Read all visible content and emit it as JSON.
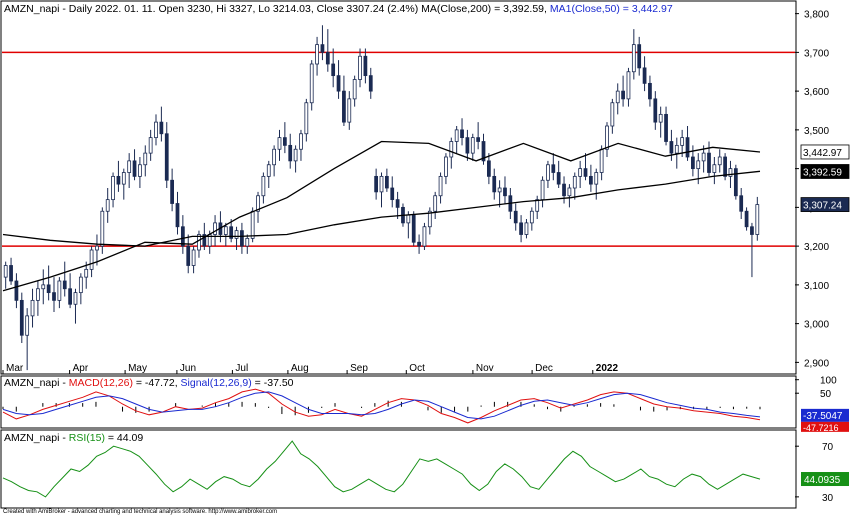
{
  "colors": {
    "background": "#ffffff",
    "candle_up": "#ffffff",
    "candle_down": "#1b2a52",
    "candle_outline": "#1b2a52",
    "ma200": "#000000",
    "ma50": "#000000",
    "level_line": "#e00000",
    "macd": "#e01010",
    "signal": "#1a2ad0",
    "histogram": "#000000",
    "rsi": "#169016",
    "frame": "#000000"
  },
  "price_panel": {
    "title_prefix": "AMZN_napi - Daily 2022. 01. 11. Open 3230, Hi 3327, Lo 3214.03, Close 3307.24 (2.4%) MA(Close,200) = 3,392.59, ",
    "title_ma50": "MA1(Close,50) = 3,442.97",
    "y_labels": [
      "3,800",
      "3,700",
      "3,600",
      "3,500",
      "3,400",
      "3,300",
      "3,200",
      "3,100",
      "3,000",
      "2,900"
    ],
    "x_labels": [
      "Mar",
      "Apr",
      "May",
      "Jun",
      "Jul",
      "Aug",
      "Sep",
      "Oct",
      "Nov",
      "Dec",
      "2022"
    ],
    "value_tags": [
      "3,442.97",
      "3,392.59",
      "3,307.24"
    ]
  },
  "macd_panel": {
    "title_name": "AMZN_napi - ",
    "title_macd": "MACD(12,26)",
    "title_macd_value": " = -47.72, ",
    "title_signal": "Signal(12,26,9)",
    "title_signal_value": " = -37.50",
    "y_labels": [
      "100",
      "50"
    ],
    "value_tags": [
      "-37.5047",
      "-47.7216"
    ]
  },
  "rsi_panel": {
    "title_name": "AMZN_napi - ",
    "title_rsi": "RSI(15)",
    "title_rsi_value": " = 44.09",
    "y_labels": [
      "70",
      "30"
    ],
    "value_tag": "44.0935"
  },
  "footer": "Created with AmiBroker - advanced charting and technical analysis software. http://www.amibroker.com",
  "chart_data": [
    {
      "type": "candlestick",
      "title": "AMZN_napi - Daily 2022. 01. 11. Open 3230, Hi 3327, Lo 3214.03, Close 3307.24 (2.4%) MA(Close,200) = 3,392.59, MA1(Close,50) = 3,442.97",
      "x_labels": [
        "Mar",
        "Apr",
        "May",
        "Jun",
        "Jul",
        "Aug",
        "Sep",
        "Oct",
        "Nov",
        "Dec",
        "2022"
      ],
      "ylim": [
        2870,
        3830
      ],
      "y_ticks": [
        2900,
        3000,
        3100,
        3200,
        3300,
        3400,
        3500,
        3600,
        3700,
        3800
      ],
      "horizontal_levels": [
        3700,
        3200
      ],
      "last_bar": {
        "open": 3230,
        "high": 3327,
        "low": 3214.03,
        "close": 3307.24
      },
      "ma200": [
        3230,
        3215,
        3205,
        3200,
        3225,
        3225,
        3230,
        3255,
        3275,
        3285,
        3300,
        3315,
        3325,
        3345,
        3360,
        3380,
        3393
      ],
      "ma50": [
        3085,
        3120,
        3160,
        3210,
        3205,
        3275,
        3325,
        3400,
        3470,
        3465,
        3420,
        3465,
        3420,
        3465,
        3432,
        3455,
        3443
      ],
      "candles": [
        [
          3120,
          3160,
          3090,
          3150
        ],
        [
          3150,
          3170,
          3100,
          3110
        ],
        [
          3110,
          3130,
          3040,
          3060
        ],
        [
          3060,
          3080,
          2950,
          2970
        ],
        [
          2970,
          3040,
          2880,
          3020
        ],
        [
          3020,
          3090,
          2990,
          3060
        ],
        [
          3060,
          3110,
          3020,
          3090
        ],
        [
          3090,
          3140,
          3050,
          3100
        ],
        [
          3100,
          3150,
          3060,
          3080
        ],
        [
          3080,
          3120,
          3030,
          3060
        ],
        [
          3060,
          3120,
          3040,
          3110
        ],
        [
          3110,
          3160,
          3070,
          3090
        ],
        [
          3090,
          3130,
          3040,
          3050
        ],
        [
          3050,
          3090,
          3000,
          3080
        ],
        [
          3080,
          3130,
          3050,
          3120
        ],
        [
          3120,
          3160,
          3090,
          3140
        ],
        [
          3140,
          3200,
          3120,
          3190
        ],
        [
          3190,
          3230,
          3150,
          3200
        ],
        [
          3200,
          3300,
          3180,
          3290
        ],
        [
          3290,
          3350,
          3260,
          3320
        ],
        [
          3320,
          3390,
          3300,
          3380
        ],
        [
          3380,
          3420,
          3340,
          3360
        ],
        [
          3360,
          3400,
          3320,
          3390
        ],
        [
          3390,
          3440,
          3350,
          3420
        ],
        [
          3420,
          3450,
          3370,
          3380
        ],
        [
          3380,
          3430,
          3350,
          3410
        ],
        [
          3410,
          3460,
          3380,
          3440
        ],
        [
          3440,
          3500,
          3420,
          3480
        ],
        [
          3480,
          3540,
          3460,
          3520
        ],
        [
          3520,
          3560,
          3470,
          3490
        ],
        [
          3490,
          3520,
          3350,
          3370
        ],
        [
          3370,
          3400,
          3290,
          3310
        ],
        [
          3310,
          3340,
          3230,
          3250
        ],
        [
          3250,
          3280,
          3180,
          3200
        ],
        [
          3200,
          3230,
          3130,
          3150
        ],
        [
          3150,
          3200,
          3130,
          3190
        ],
        [
          3190,
          3240,
          3170,
          3230
        ],
        [
          3230,
          3260,
          3190,
          3200
        ],
        [
          3200,
          3240,
          3180,
          3230
        ],
        [
          3230,
          3280,
          3200,
          3260
        ],
        [
          3260,
          3290,
          3210,
          3230
        ],
        [
          3230,
          3260,
          3200,
          3250
        ],
        [
          3250,
          3270,
          3210,
          3220
        ],
        [
          3220,
          3250,
          3190,
          3240
        ],
        [
          3240,
          3260,
          3180,
          3200
        ],
        [
          3200,
          3230,
          3180,
          3220
        ],
        [
          3220,
          3300,
          3210,
          3290
        ],
        [
          3290,
          3340,
          3260,
          3330
        ],
        [
          3330,
          3390,
          3310,
          3380
        ],
        [
          3380,
          3420,
          3350,
          3410
        ],
        [
          3410,
          3460,
          3380,
          3450
        ],
        [
          3450,
          3500,
          3420,
          3480
        ],
        [
          3480,
          3520,
          3440,
          3460
        ],
        [
          3460,
          3490,
          3400,
          3420
        ],
        [
          3420,
          3460,
          3390,
          3450
        ],
        [
          3450,
          3500,
          3420,
          3490
        ],
        [
          3490,
          3580,
          3470,
          3570
        ],
        [
          3570,
          3680,
          3550,
          3670
        ],
        [
          3670,
          3740,
          3640,
          3720
        ],
        [
          3720,
          3770,
          3680,
          3700
        ],
        [
          3700,
          3760,
          3650,
          3670
        ],
        [
          3670,
          3710,
          3610,
          3640
        ],
        [
          3640,
          3680,
          3580,
          3600
        ],
        [
          3600,
          3640,
          3510,
          3520
        ],
        [
          3520,
          3600,
          3500,
          3580
        ],
        [
          3580,
          3640,
          3560,
          3630
        ],
        [
          3630,
          3710,
          3610,
          3690
        ],
        [
          3690,
          3710,
          3620,
          3640
        ],
        [
          3640,
          3660,
          3580,
          3600
        ],
        [
          3380,
          3400,
          3320,
          3340
        ],
        [
          3340,
          3390,
          3300,
          3380
        ],
        [
          3380,
          3400,
          3340,
          3350
        ],
        [
          3350,
          3380,
          3300,
          3320
        ],
        [
          3320,
          3340,
          3270,
          3300
        ],
        [
          3300,
          3310,
          3250,
          3260
        ],
        [
          3260,
          3290,
          3220,
          3280
        ],
        [
          3280,
          3290,
          3200,
          3210
        ],
        [
          3210,
          3230,
          3180,
          3200
        ],
        [
          3200,
          3260,
          3190,
          3250
        ],
        [
          3250,
          3300,
          3230,
          3290
        ],
        [
          3290,
          3340,
          3270,
          3330
        ],
        [
          3330,
          3390,
          3310,
          3380
        ],
        [
          3380,
          3440,
          3360,
          3430
        ],
        [
          3430,
          3480,
          3400,
          3470
        ],
        [
          3470,
          3510,
          3440,
          3500
        ],
        [
          3500,
          3530,
          3460,
          3480
        ],
        [
          3480,
          3500,
          3420,
          3440
        ],
        [
          3440,
          3490,
          3420,
          3480
        ],
        [
          3480,
          3520,
          3450,
          3470
        ],
        [
          3470,
          3490,
          3410,
          3420
        ],
        [
          3420,
          3440,
          3360,
          3380
        ],
        [
          3380,
          3400,
          3320,
          3340
        ],
        [
          3340,
          3370,
          3300,
          3350
        ],
        [
          3350,
          3380,
          3310,
          3330
        ],
        [
          3330,
          3350,
          3270,
          3290
        ],
        [
          3290,
          3310,
          3240,
          3260
        ],
        [
          3260,
          3280,
          3210,
          3230
        ],
        [
          3230,
          3270,
          3220,
          3260
        ],
        [
          3260,
          3300,
          3240,
          3290
        ],
        [
          3290,
          3330,
          3270,
          3320
        ],
        [
          3320,
          3380,
          3300,
          3370
        ],
        [
          3370,
          3420,
          3350,
          3410
        ],
        [
          3410,
          3440,
          3370,
          3390
        ],
        [
          3390,
          3420,
          3350,
          3360
        ],
        [
          3360,
          3380,
          3310,
          3330
        ],
        [
          3330,
          3360,
          3300,
          3350
        ],
        [
          3350,
          3390,
          3320,
          3380
        ],
        [
          3380,
          3420,
          3350,
          3400
        ],
        [
          3400,
          3440,
          3370,
          3380
        ],
        [
          3380,
          3410,
          3340,
          3360
        ],
        [
          3360,
          3400,
          3320,
          3390
        ],
        [
          3390,
          3460,
          3370,
          3450
        ],
        [
          3450,
          3520,
          3430,
          3510
        ],
        [
          3510,
          3580,
          3490,
          3570
        ],
        [
          3570,
          3620,
          3540,
          3600
        ],
        [
          3600,
          3640,
          3560,
          3580
        ],
        [
          3580,
          3660,
          3560,
          3650
        ],
        [
          3650,
          3760,
          3630,
          3720
        ],
        [
          3720,
          3740,
          3640,
          3660
        ],
        [
          3660,
          3690,
          3600,
          3620
        ],
        [
          3620,
          3640,
          3560,
          3580
        ],
        [
          3580,
          3600,
          3500,
          3520
        ],
        [
          3520,
          3560,
          3480,
          3540
        ],
        [
          3540,
          3560,
          3460,
          3470
        ],
        [
          3470,
          3500,
          3420,
          3440
        ],
        [
          3440,
          3480,
          3400,
          3460
        ],
        [
          3460,
          3500,
          3430,
          3480
        ],
        [
          3480,
          3510,
          3420,
          3430
        ],
        [
          3430,
          3460,
          3380,
          3400
        ],
        [
          3400,
          3440,
          3360,
          3420
        ],
        [
          3420,
          3460,
          3390,
          3440
        ],
        [
          3440,
          3470,
          3380,
          3390
        ],
        [
          3390,
          3430,
          3360,
          3410
        ],
        [
          3410,
          3450,
          3390,
          3430
        ],
        [
          3430,
          3440,
          3370,
          3380
        ],
        [
          3380,
          3420,
          3350,
          3400
        ],
        [
          3400,
          3410,
          3320,
          3330
        ],
        [
          3330,
          3350,
          3270,
          3290
        ],
        [
          3290,
          3300,
          3240,
          3250
        ],
        [
          3250,
          3260,
          3120,
          3230
        ],
        [
          3230,
          3327,
          3214.03,
          3307.24
        ]
      ]
    },
    {
      "type": "line",
      "title": "AMZN_napi - MACD(12,26) = -47.72, Signal(12,26,9) = -37.50",
      "ylim": [
        -75,
        110
      ],
      "y_ticks": [
        100,
        50
      ],
      "series": [
        {
          "name": "MACD(12,26)",
          "values": [
            -20,
            -45,
            -30,
            -10,
            5,
            20,
            35,
            55,
            40,
            10,
            -15,
            -30,
            -20,
            0,
            -10,
            -5,
            15,
            30,
            55,
            65,
            50,
            10,
            -20,
            -35,
            -30,
            -10,
            -25,
            -35,
            -10,
            15,
            30,
            25,
            5,
            -25,
            -40,
            -60,
            -40,
            -15,
            5,
            25,
            30,
            15,
            -5,
            10,
            25,
            45,
            55,
            50,
            30,
            10,
            0,
            -5,
            -15,
            -20,
            -25,
            -35,
            -40,
            -48
          ]
        },
        {
          "name": "Signal(12,26,9)",
          "values": [
            -10,
            -25,
            -30,
            -25,
            -10,
            5,
            20,
            35,
            40,
            30,
            10,
            -10,
            -20,
            -15,
            -10,
            -10,
            0,
            15,
            35,
            50,
            55,
            40,
            15,
            -10,
            -25,
            -25,
            -25,
            -30,
            -25,
            -10,
            10,
            25,
            20,
            0,
            -20,
            -40,
            -45,
            -35,
            -15,
            5,
            20,
            25,
            15,
            5,
            15,
            30,
            45,
            50,
            45,
            30,
            15,
            5,
            -5,
            -10,
            -20,
            -25,
            -32,
            -37.5
          ]
        }
      ],
      "last_values": {
        "MACD": -47.7216,
        "Signal": -37.5047
      }
    },
    {
      "type": "line",
      "title": "AMZN_napi - RSI(15) = 44.09",
      "ylim": [
        22,
        82
      ],
      "y_ticks": [
        70,
        30
      ],
      "series": [
        {
          "name": "RSI(15)",
          "values": [
            45,
            42,
            38,
            35,
            34,
            30,
            38,
            45,
            52,
            50,
            55,
            62,
            65,
            70,
            68,
            66,
            62,
            55,
            48,
            40,
            34,
            38,
            44,
            40,
            36,
            42,
            46,
            44,
            40,
            38,
            44,
            52,
            58,
            66,
            74,
            64,
            60,
            54,
            46,
            38,
            34,
            36,
            40,
            44,
            40,
            36,
            34,
            40,
            50,
            60,
            58,
            60,
            56,
            52,
            48,
            40,
            35,
            40,
            50,
            56,
            52,
            46,
            38,
            36,
            44,
            52,
            60,
            66,
            62,
            54,
            50,
            46,
            42,
            44,
            48,
            52,
            46,
            44,
            40,
            38,
            44,
            48,
            46,
            40,
            36,
            40,
            44,
            48,
            46,
            44
          ]
        }
      ],
      "last_value": 44.0935
    }
  ]
}
